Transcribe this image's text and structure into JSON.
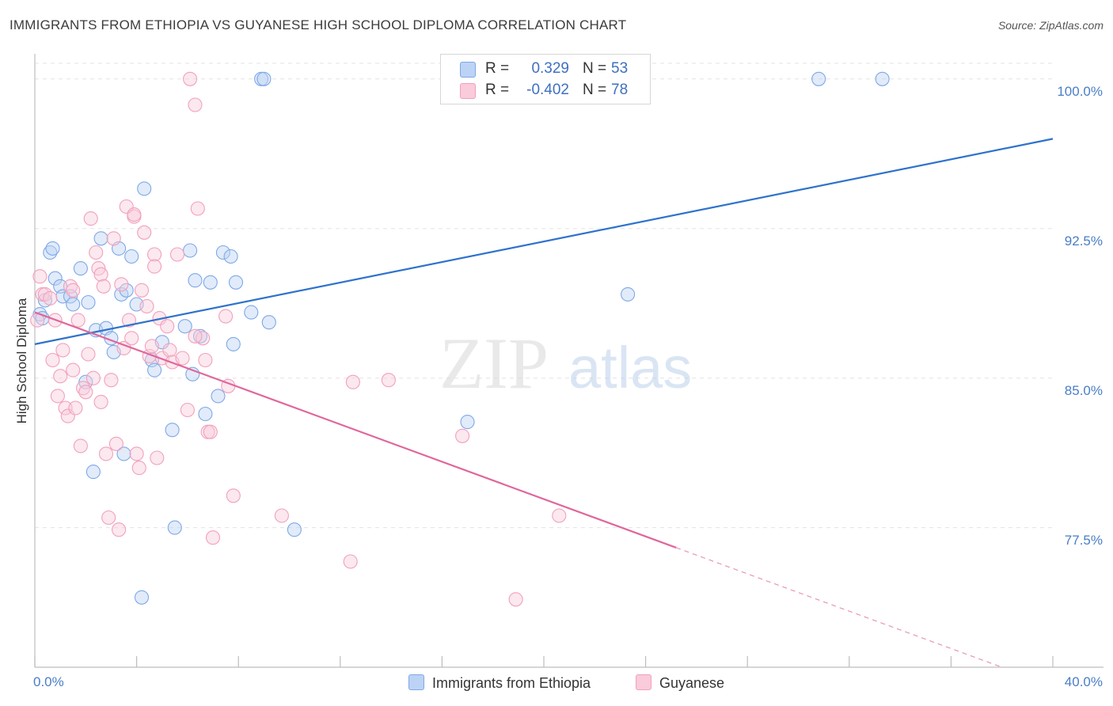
{
  "header": {
    "title": "IMMIGRANTS FROM ETHIOPIA VS GUYANESE HIGH SCHOOL DIPLOMA CORRELATION CHART",
    "source": "Source: ZipAtlas.com"
  },
  "watermark": {
    "zip": "ZIP",
    "atlas": "atlas"
  },
  "stats": {
    "r_label": "R =",
    "n_label": "N =",
    "rows": [
      {
        "r": "0.329",
        "n": "53",
        "color": "#7ea8e8"
      },
      {
        "r": "-0.402",
        "n": "78",
        "color": "#f2a0bb"
      }
    ]
  },
  "chart_data": {
    "type": "scatter",
    "title": "IMMIGRANTS FROM ETHIOPIA VS GUYANESE HIGH SCHOOL DIPLOMA CORRELATION CHART",
    "xlabel": "",
    "ylabel": "High School Diploma",
    "xlim": [
      0,
      40
    ],
    "ylim": [
      70.5,
      101.5
    ],
    "x_tick_labels": [
      "0.0%",
      "40.0%"
    ],
    "y_ticks": [
      77.5,
      85.0,
      92.5,
      100.0
    ],
    "y_tick_labels": [
      "77.5%",
      "85.0%",
      "92.5%",
      "100.0%"
    ],
    "grid": true,
    "legend": "bottom",
    "series": [
      {
        "name": "Immigrants from Ethiopia",
        "color": "#7ea8e8",
        "fill": "#bcd3f5",
        "line_color": "#2f72cc",
        "trend": {
          "x": [
            0,
            40
          ],
          "y": [
            86.7,
            97.0
          ],
          "solid_to": 40
        },
        "points": [
          [
            0.2,
            88.2
          ],
          [
            0.4,
            88.9
          ],
          [
            0.6,
            91.3
          ],
          [
            0.7,
            91.5
          ],
          [
            0.8,
            90.0
          ],
          [
            1.0,
            89.6
          ],
          [
            1.1,
            89.1
          ],
          [
            1.4,
            89.1
          ],
          [
            1.5,
            88.7
          ],
          [
            1.8,
            90.5
          ],
          [
            2.0,
            84.8
          ],
          [
            2.1,
            88.8
          ],
          [
            2.3,
            80.3
          ],
          [
            2.4,
            87.4
          ],
          [
            2.6,
            92.0
          ],
          [
            2.8,
            87.5
          ],
          [
            3.0,
            87.0
          ],
          [
            3.1,
            86.3
          ],
          [
            3.3,
            91.5
          ],
          [
            3.4,
            89.2
          ],
          [
            3.5,
            81.2
          ],
          [
            3.6,
            89.4
          ],
          [
            3.8,
            91.1
          ],
          [
            4.0,
            88.7
          ],
          [
            4.2,
            74.0
          ],
          [
            4.3,
            94.5
          ],
          [
            4.6,
            85.9
          ],
          [
            4.7,
            85.4
          ],
          [
            5.0,
            86.8
          ],
          [
            5.4,
            82.4
          ],
          [
            5.5,
            77.5
          ],
          [
            5.9,
            87.6
          ],
          [
            6.1,
            91.4
          ],
          [
            6.2,
            85.2
          ],
          [
            6.3,
            89.9
          ],
          [
            6.5,
            87.1
          ],
          [
            6.7,
            83.2
          ],
          [
            6.9,
            89.8
          ],
          [
            7.2,
            84.1
          ],
          [
            7.4,
            91.3
          ],
          [
            7.7,
            91.1
          ],
          [
            7.8,
            86.7
          ],
          [
            7.9,
            89.8
          ],
          [
            8.5,
            88.3
          ],
          [
            8.9,
            100.0
          ],
          [
            9.0,
            100.0
          ],
          [
            9.2,
            87.8
          ],
          [
            10.2,
            77.4
          ],
          [
            17.0,
            82.8
          ],
          [
            23.3,
            89.2
          ],
          [
            30.8,
            100.0
          ],
          [
            33.3,
            100.0
          ],
          [
            0.3,
            88.0
          ]
        ]
      },
      {
        "name": "Guyanese",
        "color": "#f2a0bb",
        "fill": "#f9cbdb",
        "line_color": "#e0669a",
        "trend": {
          "x": [
            0,
            38
          ],
          "y": [
            88.3,
            70.5
          ],
          "solid_to": 25.2
        },
        "points": [
          [
            0.1,
            87.9
          ],
          [
            0.2,
            90.1
          ],
          [
            0.3,
            89.2
          ],
          [
            0.4,
            89.2
          ],
          [
            0.6,
            89.0
          ],
          [
            0.7,
            85.9
          ],
          [
            0.8,
            87.9
          ],
          [
            0.9,
            84.1
          ],
          [
            1.0,
            85.1
          ],
          [
            1.1,
            86.4
          ],
          [
            1.2,
            83.5
          ],
          [
            1.3,
            83.1
          ],
          [
            1.4,
            89.6
          ],
          [
            1.5,
            85.4
          ],
          [
            1.6,
            83.5
          ],
          [
            1.7,
            87.9
          ],
          [
            1.8,
            81.6
          ],
          [
            1.9,
            84.5
          ],
          [
            2.0,
            84.3
          ],
          [
            2.1,
            86.2
          ],
          [
            2.2,
            93.0
          ],
          [
            2.3,
            85.0
          ],
          [
            2.4,
            91.3
          ],
          [
            2.5,
            90.5
          ],
          [
            2.6,
            90.2
          ],
          [
            2.7,
            89.6
          ],
          [
            2.8,
            81.2
          ],
          [
            2.9,
            78.0
          ],
          [
            3.0,
            84.9
          ],
          [
            3.1,
            92.0
          ],
          [
            3.2,
            81.7
          ],
          [
            3.3,
            77.4
          ],
          [
            3.4,
            89.7
          ],
          [
            3.5,
            86.5
          ],
          [
            3.6,
            93.6
          ],
          [
            3.7,
            87.9
          ],
          [
            3.8,
            87.0
          ],
          [
            3.9,
            93.1
          ],
          [
            4.0,
            81.2
          ],
          [
            4.1,
            80.5
          ],
          [
            4.2,
            89.4
          ],
          [
            4.3,
            92.3
          ],
          [
            4.4,
            88.6
          ],
          [
            4.5,
            86.1
          ],
          [
            4.6,
            86.6
          ],
          [
            4.7,
            91.2
          ],
          [
            4.8,
            81.0
          ],
          [
            4.9,
            88.0
          ],
          [
            5.0,
            86.0
          ],
          [
            5.2,
            87.6
          ],
          [
            5.3,
            86.4
          ],
          [
            5.4,
            85.8
          ],
          [
            5.6,
            91.2
          ],
          [
            5.8,
            86.0
          ],
          [
            6.0,
            83.4
          ],
          [
            6.1,
            100.0
          ],
          [
            6.3,
            98.7
          ],
          [
            6.4,
            93.5
          ],
          [
            6.6,
            87.0
          ],
          [
            6.7,
            85.9
          ],
          [
            6.8,
            82.3
          ],
          [
            6.9,
            82.3
          ],
          [
            7.0,
            77.0
          ],
          [
            7.5,
            88.1
          ],
          [
            7.6,
            84.6
          ],
          [
            7.8,
            79.1
          ],
          [
            9.7,
            78.1
          ],
          [
            12.4,
            75.8
          ],
          [
            12.5,
            84.8
          ],
          [
            13.9,
            84.9
          ],
          [
            16.8,
            82.1
          ],
          [
            18.9,
            73.9
          ],
          [
            20.6,
            78.1
          ],
          [
            3.9,
            93.2
          ],
          [
            2.6,
            83.8
          ],
          [
            1.5,
            89.4
          ],
          [
            6.3,
            87.1
          ],
          [
            4.7,
            90.6
          ]
        ]
      }
    ]
  }
}
